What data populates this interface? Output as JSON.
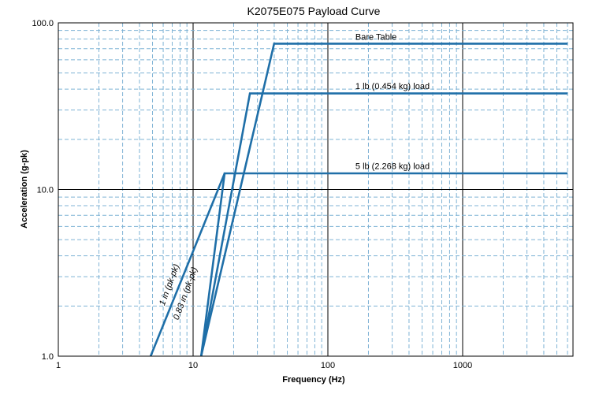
{
  "chart_data": {
    "type": "line",
    "title": "K2075E075 Payload Curve",
    "xlabel": "Frequency (Hz)",
    "ylabel": "Acceleration (g-pk)",
    "x_scale": "log",
    "y_scale": "log",
    "xlim": [
      1,
      6000
    ],
    "ylim": [
      1.0,
      100.0
    ],
    "x_ticks": [
      {
        "value": 1,
        "label": "1"
      },
      {
        "value": 10,
        "label": "10"
      },
      {
        "value": 100,
        "label": "100"
      },
      {
        "value": 1000,
        "label": "1000"
      }
    ],
    "y_ticks": [
      {
        "value": 1,
        "label": "1.0"
      },
      {
        "value": 10,
        "label": "10.0"
      },
      {
        "value": 100,
        "label": "100.0"
      }
    ],
    "grid": true,
    "series": [
      {
        "name": "Bare Table",
        "points": [
          [
            11.47,
            1.0
          ],
          [
            39.9,
            75.0
          ],
          [
            6000,
            75.0
          ]
        ]
      },
      {
        "name": "1 lb (0.454  kg) load",
        "points": [
          [
            11.47,
            1.0
          ],
          [
            26.4,
            37.7
          ],
          [
            6000,
            37.7
          ]
        ]
      },
      {
        "name": "5 lb (2.268  kg) load",
        "points": [
          [
            11.47,
            1.0
          ],
          [
            17.13,
            12.5
          ],
          [
            6000,
            12.5
          ]
        ]
      },
      {
        "name": "0.83 in (pk-pk)",
        "points": [
          [
            4.84,
            1.0
          ],
          [
            17.13,
            12.5
          ]
        ]
      }
    ],
    "annotations": [
      {
        "text": "Bare Table",
        "x": 160,
        "y": 79
      },
      {
        "text": "1 lb (0.454  kg) load",
        "x": 160,
        "y": 40
      },
      {
        "text": "5 lb (2.268  kg) load",
        "x": 160,
        "y": 13.3
      }
    ],
    "line_labels": [
      {
        "text": "1 in (pk-pk)",
        "x": 6.95,
        "y": 2.65
      },
      {
        "text": "0.83 in (pk-pk)",
        "x": 9.15,
        "y": 2.35
      }
    ],
    "colors": {
      "line": "#1f6fa8",
      "grid_major": "#000000",
      "grid_minor": "#7fb3d5"
    }
  }
}
